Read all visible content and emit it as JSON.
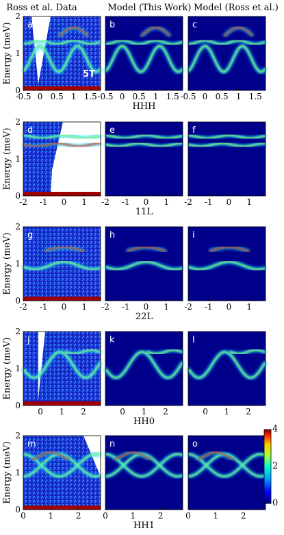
{
  "figure": {
    "column_titles": [
      "Ross et al. Data",
      "Model (This Work)",
      "Model (Ross et al.)"
    ],
    "ylabel": "Energy (meV)",
    "field_label": "5T",
    "rows": [
      {
        "xlabel": "HHH",
        "xlim": [
          -0.5,
          1.8
        ],
        "xticks": [
          "-0.5",
          "0",
          "0.5",
          "1",
          "1.5"
        ],
        "panels": [
          "a",
          "b",
          "c"
        ]
      },
      {
        "xlabel": "11L",
        "xlim": [
          -2,
          1.8
        ],
        "xticks": [
          "-2",
          "-1",
          "0",
          "1"
        ],
        "panels": [
          "d",
          "e",
          "f"
        ]
      },
      {
        "xlabel": "22L",
        "xlim": [
          -2,
          1.8
        ],
        "xticks": [
          "-2",
          "-1",
          "0",
          "1"
        ],
        "panels": [
          "g",
          "h",
          "i"
        ]
      },
      {
        "xlabel": "HH0",
        "xlim": [
          -0.8,
          2.8
        ],
        "xticks": [
          "0",
          "1",
          "2"
        ],
        "panels": [
          "j",
          "k",
          "l"
        ]
      },
      {
        "xlabel": "HH1",
        "xlim": [
          0,
          2.8
        ],
        "xticks": [
          "0",
          "1",
          "2"
        ],
        "panels": [
          "m",
          "n",
          "o"
        ]
      }
    ],
    "yticks": [
      "0",
      "1",
      "2"
    ],
    "colorbar": {
      "ticks": [
        "0",
        "2",
        "4"
      ],
      "range": [
        0,
        4
      ]
    }
  },
  "chart_data": {
    "type": "heatmap",
    "ylabel": "Energy (meV)",
    "ylim": [
      0,
      2
    ],
    "colorbar_range": [
      0,
      4
    ],
    "series": [
      {
        "name": "HHH",
        "x": [
          -0.5,
          0,
          0.5,
          1,
          1.5
        ],
        "bands": [
          [
            1.2,
            0.5,
            1.2,
            1.5,
            1.25
          ],
          [
            1.35,
            1.3,
            1.3,
            1.35,
            1.4
          ]
        ]
      },
      {
        "name": "11L",
        "bands": [
          [
            1.6,
            1.55,
            1.6,
            1.55
          ],
          [
            1.35,
            1.4,
            1.35,
            1.4
          ]
        ]
      },
      {
        "name": "22L",
        "bands": [
          [
            1.0,
            0.9,
            1.45,
            0.9,
            1.0
          ]
        ]
      },
      {
        "name": "HH0",
        "x": [
          0,
          1,
          2
        ],
        "bands": [
          [
            1.2,
            0.8,
            1.4,
            1.5
          ]
        ]
      },
      {
        "name": "HH1",
        "x": [
          0,
          1,
          2
        ],
        "bands": [
          [
            1.2,
            1.5,
            1.2,
            0.8
          ]
        ]
      }
    ]
  }
}
